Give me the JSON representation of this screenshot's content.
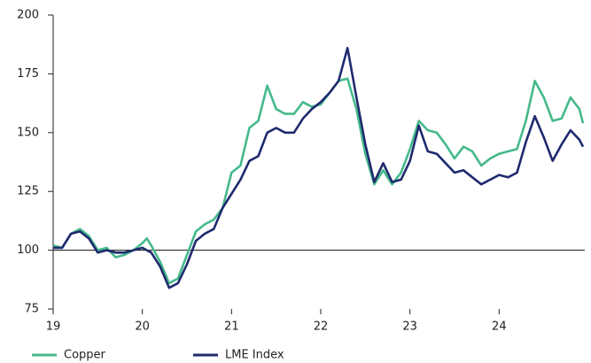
{
  "chart_data": {
    "type": "line",
    "x": [
      19.0,
      19.1,
      19.2,
      19.3,
      19.4,
      19.5,
      19.6,
      19.7,
      19.8,
      19.9,
      20.0,
      20.05,
      20.1,
      20.2,
      20.3,
      20.4,
      20.5,
      20.6,
      20.7,
      20.8,
      20.9,
      21.0,
      21.1,
      21.2,
      21.3,
      21.4,
      21.5,
      21.6,
      21.7,
      21.8,
      21.9,
      22.0,
      22.1,
      22.2,
      22.3,
      22.4,
      22.5,
      22.6,
      22.7,
      22.8,
      22.9,
      23.0,
      23.1,
      23.2,
      23.3,
      23.4,
      23.5,
      23.6,
      23.7,
      23.8,
      23.9,
      24.0,
      24.1,
      24.2,
      24.3,
      24.4,
      24.5,
      24.6,
      24.7,
      24.8,
      24.9,
      24.94
    ],
    "series": [
      {
        "name": "Copper",
        "color": "#45b98a",
        "values": [
          102,
          101,
          107,
          109,
          106,
          100,
          101,
          97,
          98,
          100,
          103,
          105,
          102,
          95,
          86,
          88,
          98,
          108,
          111,
          113,
          118,
          133,
          136,
          152,
          155,
          170,
          160,
          158,
          158,
          163,
          161,
          162,
          167,
          172,
          173,
          160,
          141,
          128,
          134,
          128,
          133,
          143,
          155,
          151,
          150,
          145,
          139,
          144,
          142,
          136,
          139,
          141,
          142,
          143,
          155,
          172,
          165,
          155,
          156,
          165,
          160,
          154
        ]
      },
      {
        "name": "LME Index",
        "color": "#1f2a6e",
        "values": [
          101,
          101,
          107,
          108,
          105,
          99,
          100,
          99,
          99,
          100,
          101,
          100,
          99,
          93,
          84,
          86,
          94,
          104,
          107,
          109,
          118,
          124,
          130,
          138,
          140,
          150,
          152,
          150,
          150,
          156,
          160,
          163,
          167,
          172,
          186,
          165,
          145,
          129,
          137,
          129,
          130,
          138,
          153,
          142,
          141,
          137,
          133,
          134,
          131,
          128,
          130,
          132,
          131,
          133,
          146,
          157,
          148,
          138,
          145,
          151,
          147,
          144
        ]
      }
    ],
    "xlim": [
      19,
      25
    ],
    "xticks": [
      19,
      20,
      21,
      22,
      23,
      24
    ],
    "ylim": [
      75,
      200
    ],
    "yticks": [
      75,
      100,
      125,
      150,
      175,
      200
    ],
    "baseline": 100,
    "legend": "bottom"
  }
}
